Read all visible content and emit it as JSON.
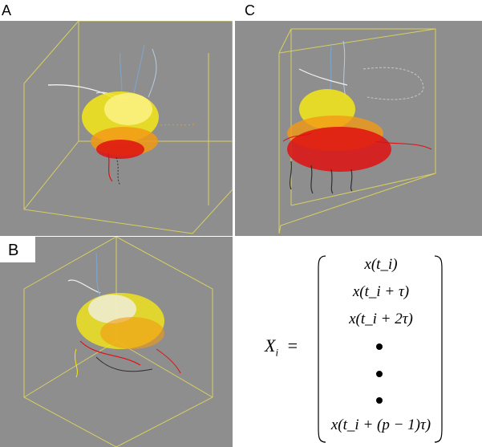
{
  "panels": {
    "a": {
      "label": "A"
    },
    "b": {
      "label": "B"
    },
    "c": {
      "label": "C"
    }
  },
  "equation": {
    "lhs": "X",
    "lhs_subscript": "i",
    "equals": "=",
    "rows": [
      "x(t_i)",
      "x(t_i + τ)",
      "x(t_i + 2τ)",
      "•",
      "•",
      "•",
      "x(t_i + (p − 1)τ)"
    ]
  },
  "colors": {
    "background": "#8e8e8e",
    "box_edge": "#d8d060",
    "trail_blue": "#7fa3c8",
    "trail_white": "#f0f0f0",
    "trail_yellow": "#f6e818",
    "trail_orange": "#f29a14",
    "trail_red": "#e01010",
    "trail_dark": "#303030"
  }
}
